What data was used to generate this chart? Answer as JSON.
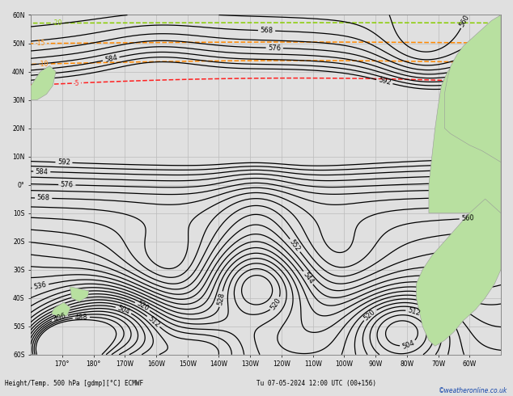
{
  "title_bottom": "Height/Temp. 500 hPa [gdmp][°C] ECMWF",
  "date_str": "Tu 07-05-2024 12:00 UTC (00+156)",
  "copyright": "©weatheronline.co.uk",
  "background_color": "#e0e0e0",
  "land_color": "#b8e0a0",
  "ocean_color": "#e0e0e0",
  "grid_color": "#bbbbbb",
  "z500_color": "#000000",
  "temp_colors": {
    "-5": "#ff2020",
    "-10": "#ff8800",
    "-15": "#ff8800",
    "-20": "#88cc00",
    "-25": "#00ccaa",
    "-30": "#00aaff",
    "-35": "#0044ff",
    "-40": "#aa00aa"
  },
  "figsize": [
    6.34,
    4.9
  ],
  "dpi": 100,
  "lon_min": 160,
  "lon_max": 310,
  "lat_min": -60,
  "lat_max": 60
}
